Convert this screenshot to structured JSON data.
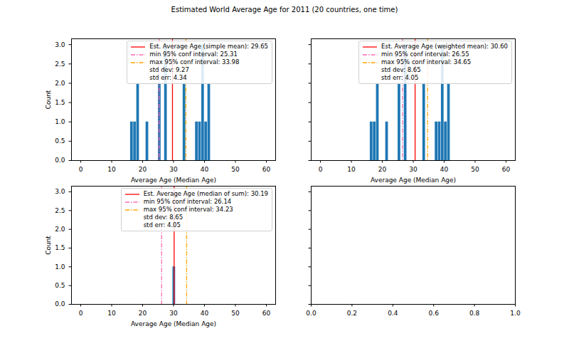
{
  "title": "Estimated World Average Age for 2011 (20 countries, one time)",
  "chart_data": [
    {
      "type": "histogram",
      "x_label": "Average Age (Median Age)",
      "y_label": "Count",
      "bins": [
        16,
        17,
        18,
        19,
        20,
        21,
        22,
        23,
        24,
        25,
        26,
        27,
        28,
        29,
        30,
        31,
        32,
        33,
        34,
        35,
        36,
        37,
        38,
        39,
        40,
        41,
        42
      ],
      "counts": [
        1,
        1,
        2,
        0,
        0,
        1,
        0,
        0,
        0,
        2,
        0,
        3,
        0,
        0,
        0,
        0,
        0,
        2,
        0,
        0,
        0,
        1,
        1,
        3,
        1,
        2
      ],
      "color": "#1f77b4",
      "xlim": [
        -3,
        63
      ],
      "xticks": [
        0,
        10,
        20,
        30,
        40,
        50,
        60
      ],
      "ylim": [
        0,
        3.15
      ],
      "yticks": [
        {
          "value": 0,
          "label": "0.0"
        },
        {
          "value": 0.5,
          "label": "0.5"
        },
        {
          "value": 1,
          "label": "1.0"
        },
        {
          "value": 1.5,
          "label": "1.5"
        },
        {
          "value": 2,
          "label": "2.0"
        },
        {
          "value": 2.5,
          "label": "2.5"
        },
        {
          "value": 3,
          "label": "3.0"
        }
      ],
      "legend": "upper right",
      "reference_lines": [
        {
          "name": "Est. Average Age (simple mean): 29.65",
          "value": 29.65,
          "color": "red",
          "line_style": "solid"
        },
        {
          "name": "min 95% conf interval: 25.31",
          "value": 25.31,
          "color": "hotpink",
          "line_style": "dashdot"
        },
        {
          "name": "max 95% conf interval: 33.98",
          "value": 33.98,
          "color": "orange",
          "line_style": "dashdot"
        }
      ],
      "legend_texts": [
        "std dev: 9.27",
        "std err: 4.34"
      ]
    },
    {
      "type": "histogram",
      "x_label": "Average Age (Median Age)",
      "bins": [
        16,
        17,
        18,
        19,
        20,
        21,
        22,
        23,
        24,
        25,
        26,
        27,
        28,
        29,
        30,
        31,
        32,
        33,
        34,
        35,
        36,
        37,
        38,
        39,
        40,
        41,
        42
      ],
      "counts": [
        1,
        1,
        2,
        0,
        0,
        1,
        0,
        0,
        0,
        2,
        0,
        3,
        0,
        0,
        0,
        0,
        0,
        2,
        0,
        0,
        0,
        1,
        1,
        3,
        1,
        2
      ],
      "color": "#1f77b4",
      "xlim": [
        -3,
        63
      ],
      "xticks": [
        0,
        10,
        20,
        30,
        40,
        50,
        60
      ],
      "ylim": [
        0,
        3.15
      ],
      "yticks": [
        0,
        0.5,
        1,
        1.5,
        2,
        2.5,
        3
      ],
      "tick_labels": "x",
      "legend": "upper right",
      "reference_lines": [
        {
          "name": "Est. Average Age (weighted mean): 30.60",
          "value": 30.6,
          "color": "red",
          "line_style": "solid"
        },
        {
          "name": "min 95% conf interval: 26.55",
          "value": 26.55,
          "color": "hotpink",
          "line_style": "dashdot"
        },
        {
          "name": "max 95% conf interval: 34.65",
          "value": 34.65,
          "color": "orange",
          "line_style": "dashdot"
        }
      ],
      "legend_texts": [
        "std dev: 8.65",
        "std err: 4.05"
      ]
    },
    {
      "type": "histogram",
      "x_label": "Average Age (Median Age)",
      "y_label": "Count",
      "bins": [
        29.7,
        30.7
      ],
      "counts": [
        1
      ],
      "color": "#1f77b4",
      "xlim": [
        -3,
        63
      ],
      "xticks": [
        0,
        10,
        20,
        30,
        40,
        50,
        60
      ],
      "ylim": [
        0,
        3.15
      ],
      "yticks": [
        {
          "value": 0,
          "label": "0.0"
        },
        {
          "value": 0.5,
          "label": "0.5"
        },
        {
          "value": 1,
          "label": "1.0"
        },
        {
          "value": 1.5,
          "label": "1.5"
        },
        {
          "value": 2,
          "label": "2.0"
        },
        {
          "value": 2.5,
          "label": "2.5"
        },
        {
          "value": 3,
          "label": "3.0"
        }
      ],
      "legend": "upper right",
      "reference_lines": [
        {
          "name": "Est. Average Age (median of sum): 30.19",
          "value": 30.19,
          "color": "red",
          "line_style": "solid"
        },
        {
          "name": "min 95% conf interval: 26.14",
          "value": 26.14,
          "color": "hotpink",
          "line_style": "dashdot"
        },
        {
          "name": "max 95% conf interval: 34.23",
          "value": 34.23,
          "color": "orange",
          "line_style": "dashdot"
        }
      ],
      "legend_texts": [
        "std dev: 8.65",
        "std err: 4.05"
      ]
    },
    {
      "type": "empty",
      "xlim": [
        0,
        1
      ],
      "xticks": [
        {
          "value": 0,
          "label": "0.0"
        },
        {
          "value": 0.2,
          "label": "0.2"
        },
        {
          "value": 0.4,
          "label": "0.4"
        },
        {
          "value": 0.6,
          "label": "0.6"
        },
        {
          "value": 0.8,
          "label": "0.8"
        },
        {
          "value": 1,
          "label": "1.0"
        }
      ],
      "ylim": [
        0,
        3.15
      ],
      "yticks": [
        0,
        0.5,
        1,
        1.5,
        2,
        2.5,
        3
      ],
      "tick_labels": "x"
    }
  ]
}
